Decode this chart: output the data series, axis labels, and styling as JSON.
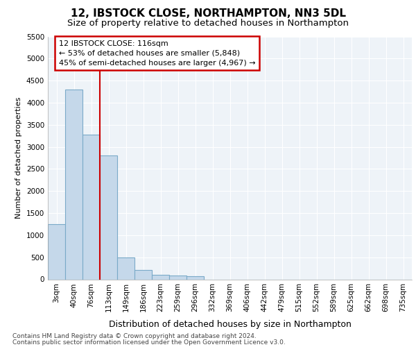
{
  "title1": "12, IBSTOCK CLOSE, NORTHAMPTON, NN3 5DL",
  "title2": "Size of property relative to detached houses in Northampton",
  "xlabel": "Distribution of detached houses by size in Northampton",
  "ylabel": "Number of detached properties",
  "footer1": "Contains HM Land Registry data © Crown copyright and database right 2024.",
  "footer2": "Contains public sector information licensed under the Open Government Licence v3.0.",
  "annotation_line1": "12 IBSTOCK CLOSE: 116sqm",
  "annotation_line2": "← 53% of detached houses are smaller (5,848)",
  "annotation_line3": "45% of semi-detached houses are larger (4,967) →",
  "bar_color": "#c5d8ea",
  "bar_edge_color": "#7aaac8",
  "red_line_color": "#cc0000",
  "background_color": "#eef3f8",
  "grid_color": "#ffffff",
  "categories": [
    "3sqm",
    "40sqm",
    "76sqm",
    "113sqm",
    "149sqm",
    "186sqm",
    "223sqm",
    "259sqm",
    "296sqm",
    "332sqm",
    "369sqm",
    "406sqm",
    "442sqm",
    "479sqm",
    "515sqm",
    "552sqm",
    "589sqm",
    "625sqm",
    "662sqm",
    "698sqm",
    "735sqm"
  ],
  "values": [
    1250,
    4300,
    3275,
    2800,
    490,
    210,
    110,
    80,
    70,
    0,
    0,
    0,
    0,
    0,
    0,
    0,
    0,
    0,
    0,
    0,
    0
  ],
  "ylim": [
    0,
    5500
  ],
  "yticks": [
    0,
    500,
    1000,
    1500,
    2000,
    2500,
    3000,
    3500,
    4000,
    4500,
    5000,
    5500
  ],
  "red_line_x": 2.5,
  "title1_fontsize": 11,
  "title2_fontsize": 9.5,
  "xlabel_fontsize": 9,
  "ylabel_fontsize": 8,
  "tick_fontsize": 7.5,
  "annotation_fontsize": 8,
  "footer_fontsize": 6.5
}
